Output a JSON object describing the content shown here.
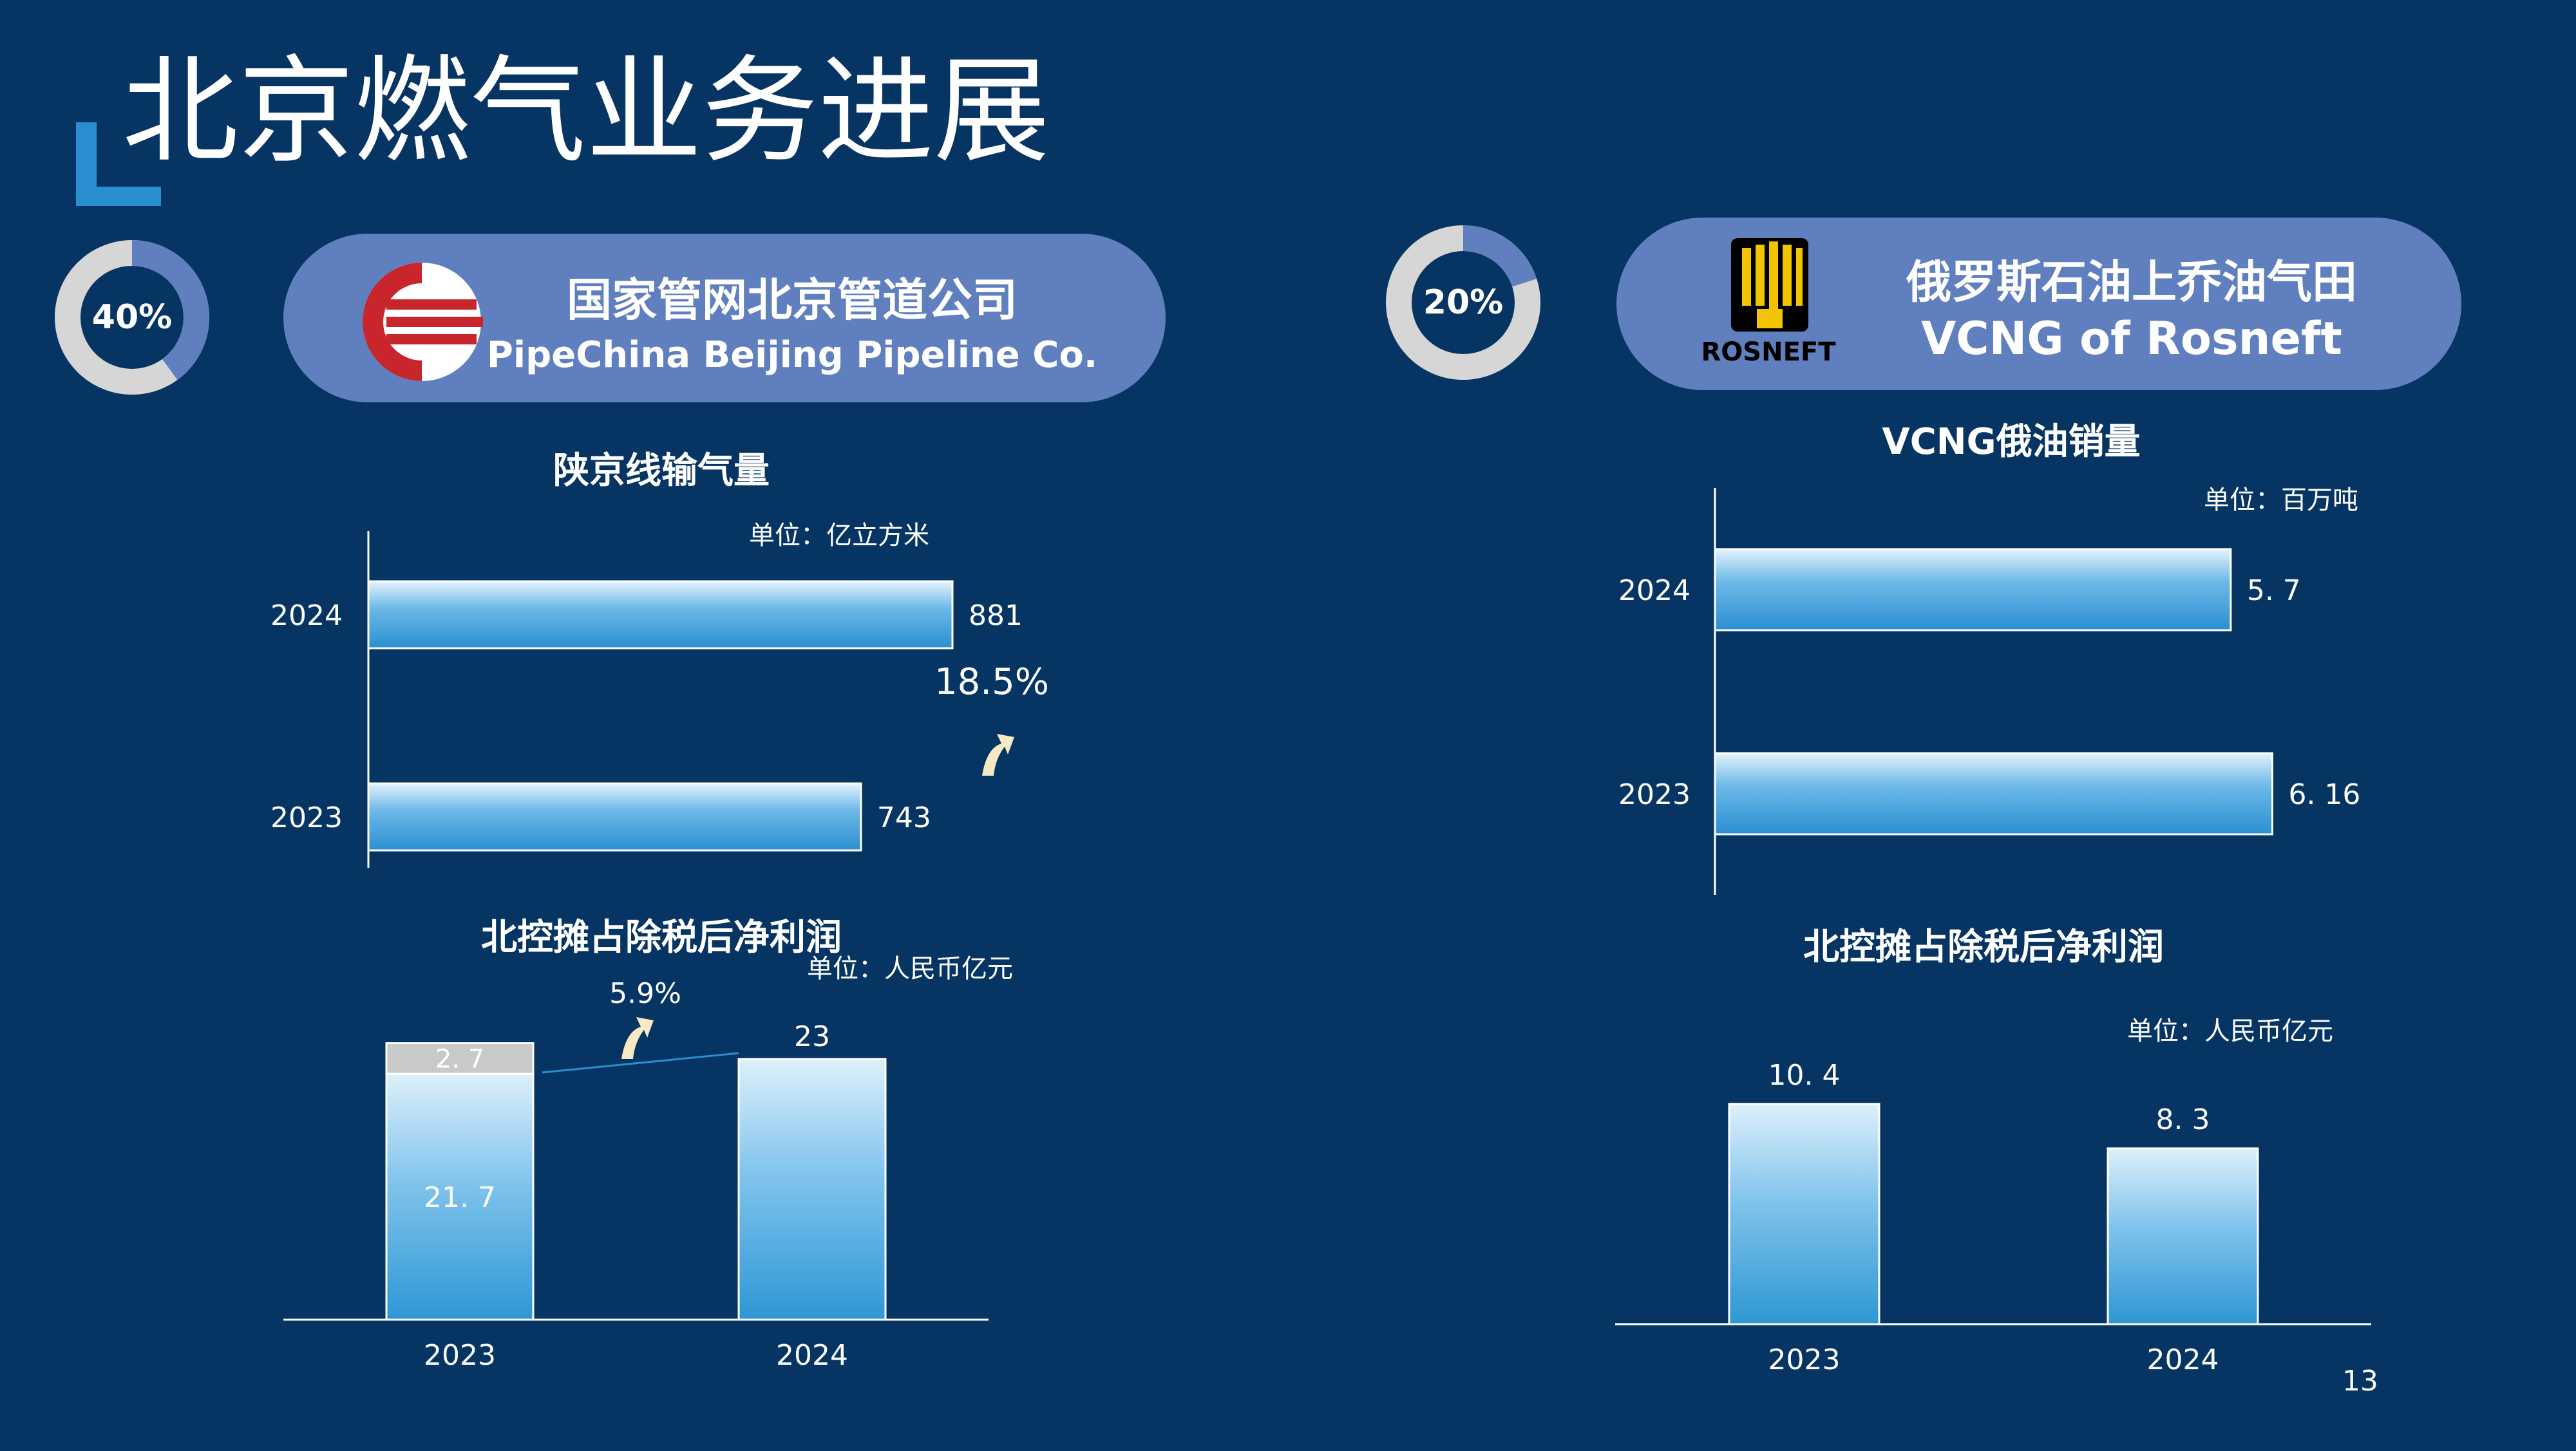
{
  "slide": {
    "title": "北京燃气业务进展",
    "page_number": "13",
    "colors": {
      "background": "#063563",
      "card": "#5F7FBF",
      "bar_top": "#D8EEFA",
      "bar_bottom": "#2E97D4",
      "accent": "#2A8FD0",
      "arrow": "#F6E9C4",
      "donut_track": "#D6D6D6",
      "donut_fill": "#5F7FBF"
    }
  },
  "left_panel": {
    "share_text": "40%",
    "share_value": 40,
    "company_cn": "国家管网北京管道公司",
    "company_en": "PipeChina Beijing Pipeline Co.",
    "logo_icon": "pipechina-logo-icon"
  },
  "right_panel": {
    "share_text": "20%",
    "share_value": 20,
    "company_cn": "俄罗斯石油上乔油气田",
    "company_en": "VCNG of Rosneft",
    "logo_icon": "rosneft-logo-icon",
    "logo_text": "ROSNEFT"
  },
  "chart_data": [
    {
      "id": "shaanjing",
      "type": "bar",
      "orientation": "horizontal",
      "title": "陕京线输气量",
      "unit": "单位：亿立方米",
      "categories": [
        "2024",
        "2023"
      ],
      "values": [
        881,
        743
      ],
      "value_labels": [
        "881",
        "743"
      ],
      "annotation": "18.5%",
      "annotation_icon": "up-arrow-icon"
    },
    {
      "id": "beikong_left",
      "type": "bar",
      "stacked": true,
      "title": "北控摊占除税后净利润",
      "unit": "单位：人民币亿元",
      "categories": [
        "2023",
        "2024"
      ],
      "series": [
        {
          "values": [
            21.7,
            23
          ],
          "labels": [
            "21. 7",
            "23"
          ]
        },
        {
          "values": [
            2.7,
            0
          ],
          "labels": [
            "2. 7",
            ""
          ]
        }
      ],
      "annotation": "5.9%",
      "annotation_icon": "up-arrow-icon"
    },
    {
      "id": "vcng",
      "type": "bar",
      "orientation": "horizontal",
      "title": "VCNG俄油销量",
      "unit": "单位：百万吨",
      "categories": [
        "2024",
        "2023"
      ],
      "values": [
        5.7,
        6.16
      ],
      "value_labels": [
        "5. 7",
        "6. 16"
      ]
    },
    {
      "id": "beikong_right",
      "type": "bar",
      "title": "北控摊占除税后净利润",
      "unit": "单位：人民币亿元",
      "categories": [
        "2023",
        "2024"
      ],
      "values": [
        10.4,
        8.3
      ],
      "value_labels": [
        "10. 4",
        "8. 3"
      ]
    }
  ]
}
